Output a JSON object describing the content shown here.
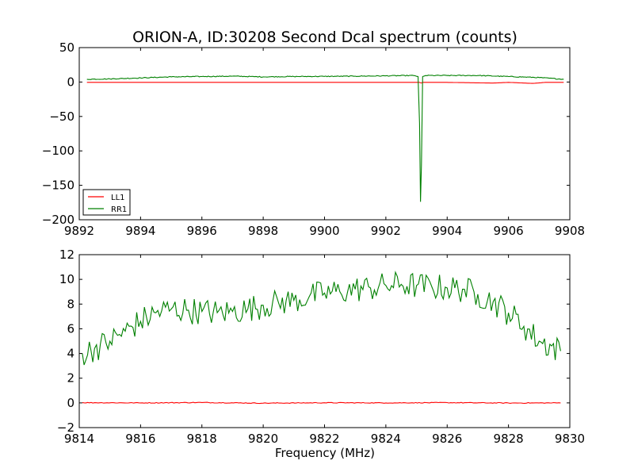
{
  "chart_data": [
    {
      "type": "line",
      "title": "ORION-A, ID:30208 Second Dcal spectrum (counts)",
      "xlabel": "",
      "ylabel": "",
      "xlim": [
        9892,
        9908
      ],
      "ylim": [
        -200,
        50
      ],
      "xticks": [
        9892,
        9894,
        9896,
        9898,
        9900,
        9902,
        9904,
        9906,
        9908
      ],
      "yticks": [
        -200,
        -150,
        -100,
        -50,
        0,
        50
      ],
      "legend": {
        "placement": "lower-left",
        "entries": [
          "LL1",
          "RR1"
        ]
      },
      "series": [
        {
          "name": "LL1",
          "color": "#ff0000",
          "x": [
            9892.25,
            9894,
            9896,
            9898,
            9900,
            9902,
            9903.1,
            9903.15,
            9903.2,
            9904,
            9905.5,
            9906,
            9906.8,
            9907.2,
            9907.8
          ],
          "y": [
            -0.5,
            -0.5,
            -0.5,
            -0.5,
            -0.5,
            -0.5,
            -0.5,
            -1.5,
            -0.5,
            -0.5,
            -1.5,
            -0.5,
            -2.0,
            -0.5,
            -0.5
          ]
        },
        {
          "name": "RR1",
          "color": "#008000",
          "x": [
            9892.25,
            9893,
            9894,
            9895,
            9896,
            9897,
            9898,
            9899,
            9900,
            9901,
            9902,
            9902.9,
            9903.05,
            9903.1,
            9903.13,
            9903.16,
            9903.2,
            9903.3,
            9904,
            9905,
            9906,
            9907,
            9907.8
          ],
          "y": [
            4,
            4.5,
            6,
            7.5,
            8,
            8.5,
            7.5,
            8,
            8.2,
            8.5,
            9,
            9.5,
            8,
            -60,
            -174,
            -120,
            8,
            9.5,
            9.5,
            9.5,
            8,
            6.5,
            4
          ]
        }
      ]
    },
    {
      "type": "line",
      "title": "",
      "xlabel": "Frequency (MHz)",
      "ylabel": "",
      "xlim": [
        9814,
        9830
      ],
      "ylim": [
        -2,
        12
      ],
      "xticks": [
        9814,
        9816,
        9818,
        9820,
        9822,
        9824,
        9826,
        9828,
        9830
      ],
      "yticks": [
        -2,
        0,
        2,
        4,
        6,
        8,
        10,
        12
      ],
      "series": [
        {
          "name": "LL1",
          "color": "#ff0000",
          "x": [
            9814.1,
            9816,
            9818,
            9820,
            9822,
            9824,
            9826,
            9828,
            9829.7
          ],
          "y": [
            0.02,
            0.0,
            0.03,
            -0.02,
            0.01,
            0.0,
            0.02,
            -0.01,
            0.0
          ]
        },
        {
          "name": "RR1",
          "color": "#008000",
          "x": [
            9814.1,
            9814.5,
            9815,
            9815.5,
            9816,
            9816.5,
            9817,
            9817.5,
            9818,
            9818.5,
            9819,
            9819.5,
            9820,
            9820.5,
            9821,
            9821.5,
            9822,
            9822.5,
            9823,
            9823.5,
            9824,
            9824.5,
            9825,
            9825.5,
            9826,
            9826.5,
            9827,
            9827.5,
            9828,
            9828.5,
            9829,
            9829.7
          ],
          "y": [
            4.0,
            4.4,
            5.0,
            5.8,
            6.6,
            7.3,
            7.6,
            7.5,
            7.4,
            7.3,
            7.4,
            7.6,
            7.9,
            8.1,
            8.3,
            8.6,
            8.9,
            9.0,
            9.2,
            9.3,
            9.5,
            9.6,
            9.5,
            9.4,
            9.3,
            9.2,
            8.8,
            8.2,
            7.3,
            6.2,
            5.0,
            4.2
          ]
        }
      ]
    }
  ]
}
